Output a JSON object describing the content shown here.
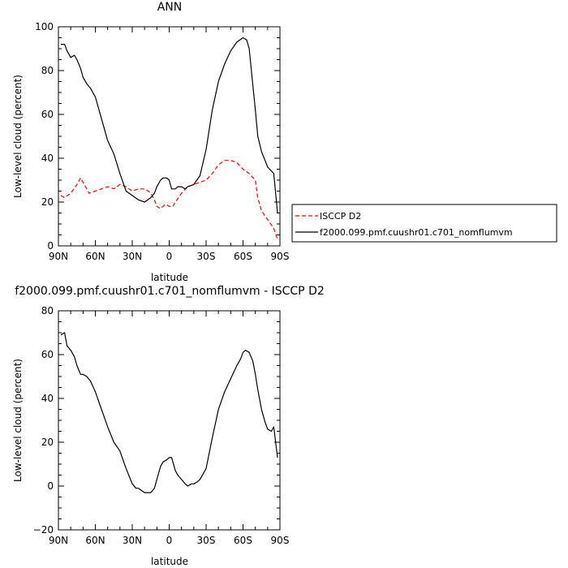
{
  "chart_data": [
    {
      "type": "line",
      "title": "ANN",
      "xlabel": "latitude",
      "ylabel": "Low-level cloud (percent)",
      "xlim": [
        90,
        -90
      ],
      "ylim": [
        0,
        100
      ],
      "xticks": [
        "90N",
        "60N",
        "30N",
        "0",
        "30S",
        "60S",
        "90S"
      ],
      "yticks": [
        "0",
        "20",
        "40",
        "60",
        "80",
        "100"
      ],
      "legend": "right",
      "series": [
        {
          "name": "ISCCP D2",
          "color": "#ff0000",
          "style": "dashed",
          "x": [
            88,
            85,
            80,
            75,
            72,
            68,
            65,
            60,
            55,
            50,
            45,
            40,
            35,
            30,
            25,
            20,
            17,
            15,
            12,
            10,
            7,
            5,
            3,
            0,
            -3,
            -5,
            -10,
            -15,
            -20,
            -25,
            -30,
            -35,
            -40,
            -45,
            -50,
            -55,
            -60,
            -65,
            -70,
            -72,
            -75,
            -80,
            -85,
            -88
          ],
          "y": [
            23,
            22,
            24,
            28,
            31,
            27,
            24,
            25,
            26,
            27,
            26,
            28,
            27,
            25,
            26,
            26,
            25,
            24,
            21,
            18,
            17,
            18,
            19,
            18,
            18,
            20,
            24,
            27,
            28,
            29,
            30,
            33,
            37,
            39,
            39,
            38,
            35,
            33,
            30,
            22,
            16,
            12,
            8,
            3
          ]
        },
        {
          "name": "f2000.099.pmf.cuushr01.c701_nomflumvm",
          "color": "#000000",
          "style": "solid",
          "x": [
            88,
            85,
            83,
            80,
            77,
            75,
            72,
            70,
            67,
            64,
            60,
            55,
            50,
            45,
            40,
            35,
            30,
            25,
            20,
            15,
            12,
            10,
            7,
            5,
            2,
            0,
            -2,
            -5,
            -7,
            -10,
            -13,
            -15,
            -20,
            -25,
            -30,
            -35,
            -40,
            -45,
            -50,
            -55,
            -60,
            -63,
            -65,
            -70,
            -72,
            -75,
            -80,
            -85,
            -88
          ],
          "y": [
            92,
            92,
            89,
            86,
            87,
            85,
            81,
            77,
            74,
            72,
            68,
            58,
            48,
            42,
            33,
            25,
            23,
            21,
            20,
            22,
            24,
            27,
            30,
            31,
            31,
            30,
            26,
            26,
            27,
            27,
            26,
            27,
            28,
            32,
            44,
            62,
            75,
            83,
            89,
            93,
            95,
            94,
            90,
            62,
            50,
            43,
            36,
            33,
            15
          ]
        }
      ]
    },
    {
      "type": "line",
      "title": "f2000.099.pmf.cuushr01.c701_nomflumvm - ISCCP D2",
      "xlabel": "latitude",
      "ylabel": "Low-level cloud (percent)",
      "xlim": [
        90,
        -90
      ],
      "ylim": [
        -20,
        80
      ],
      "xticks": [
        "90N",
        "60N",
        "30N",
        "0",
        "30S",
        "60S",
        "90S"
      ],
      "yticks": [
        "−20",
        "0",
        "20",
        "40",
        "60",
        "80"
      ],
      "series": [
        {
          "color": "#000000",
          "style": "solid",
          "x": [
            88,
            85,
            83,
            80,
            77,
            75,
            72,
            70,
            67,
            64,
            60,
            55,
            50,
            45,
            40,
            35,
            30,
            27,
            25,
            20,
            17,
            15,
            12,
            10,
            7,
            5,
            2,
            0,
            -2,
            -5,
            -7,
            -10,
            -13,
            -15,
            -18,
            -20,
            -23,
            -25,
            -30,
            -35,
            -40,
            -45,
            -50,
            -55,
            -58,
            -60,
            -62,
            -65,
            -68,
            -70,
            -72,
            -75,
            -78,
            -80,
            -83,
            -85,
            -88
          ],
          "y": [
            69,
            70,
            64,
            62,
            59,
            55,
            51,
            51,
            50,
            48,
            43,
            35,
            27,
            20,
            16,
            8,
            1,
            -1,
            -1,
            -3,
            -3,
            -3,
            -1,
            3,
            9,
            11,
            12,
            13,
            13,
            7,
            5,
            3,
            1,
            0,
            1,
            1,
            2,
            3,
            8,
            22,
            35,
            43,
            49,
            55,
            58,
            61,
            62,
            61,
            57,
            51,
            44,
            35,
            29,
            26,
            25,
            27,
            13
          ]
        }
      ]
    }
  ]
}
